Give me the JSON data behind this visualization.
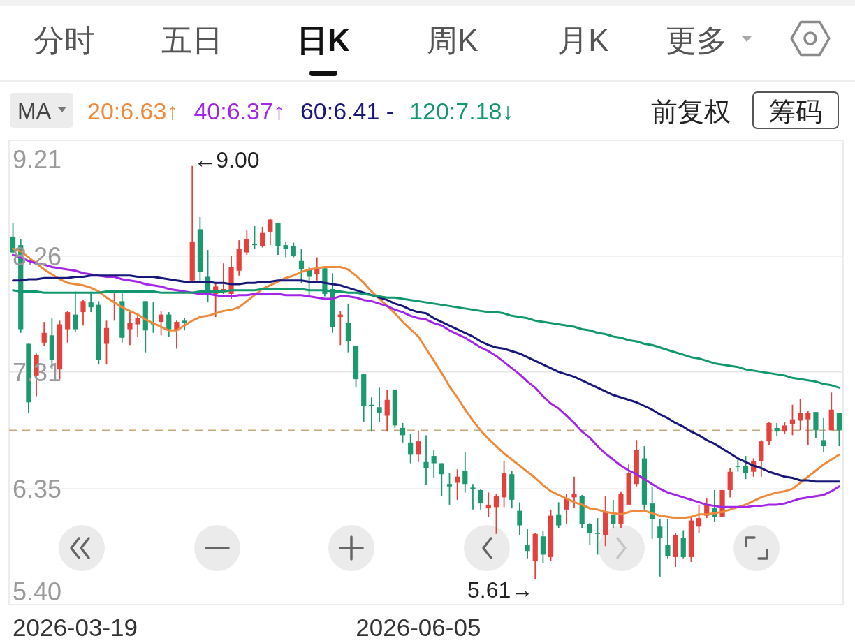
{
  "chart_data": {
    "type": "candlestick",
    "categories": [
      null,
      null,
      null,
      null,
      null,
      null,
      null,
      null,
      null,
      null,
      null,
      null,
      null,
      null,
      null,
      null,
      null,
      null,
      null,
      null,
      null,
      null,
      null,
      null,
      null,
      null,
      null,
      null,
      null,
      null,
      null,
      null,
      null,
      null,
      null,
      null,
      null,
      null,
      null,
      null,
      null,
      null,
      null,
      null,
      null,
      null,
      null,
      null,
      null,
      null,
      null,
      null,
      "2026-06-05",
      null,
      null,
      null,
      null,
      null,
      null,
      null,
      null,
      null,
      null,
      null,
      null,
      null,
      null,
      null,
      null,
      null,
      null,
      null,
      null,
      null,
      null,
      null,
      null,
      null,
      null,
      null,
      null,
      null,
      null,
      null,
      null,
      null,
      null,
      null,
      null,
      null,
      null,
      null,
      null,
      null,
      null,
      null,
      null,
      null,
      null,
      null,
      null,
      null,
      null,
      null,
      null,
      null,
      null
    ],
    "ohlc": [
      [
        8.42,
        8.53,
        8.28,
        8.29
      ],
      [
        8.35,
        8.4,
        7.63,
        7.66
      ],
      [
        7.54,
        7.54,
        6.97,
        7.06
      ],
      [
        7.28,
        7.46,
        7.11,
        7.45
      ],
      [
        7.55,
        7.72,
        7.52,
        7.63
      ],
      [
        7.61,
        7.75,
        7.33,
        7.41
      ],
      [
        7.33,
        7.73,
        7.25,
        7.7
      ],
      [
        7.66,
        7.81,
        7.55,
        7.8
      ],
      [
        7.78,
        7.97,
        7.64,
        7.66
      ],
      [
        7.8,
        7.9,
        7.69,
        7.89
      ],
      [
        7.88,
        7.96,
        7.8,
        7.84
      ],
      [
        7.86,
        7.89,
        7.37,
        7.41
      ],
      [
        7.54,
        7.73,
        7.37,
        7.67
      ],
      [
        7.97,
        7.98,
        7.73,
        7.98
      ],
      [
        7.89,
        7.98,
        7.55,
        7.59
      ],
      [
        7.66,
        7.8,
        7.53,
        7.71
      ],
      [
        7.7,
        7.77,
        7.6,
        7.75
      ],
      [
        7.89,
        7.89,
        7.47,
        7.65
      ],
      [
        7.71,
        7.88,
        7.63,
        7.7
      ],
      [
        7.72,
        7.81,
        7.61,
        7.78
      ],
      [
        7.78,
        7.8,
        7.6,
        7.66
      ],
      [
        7.65,
        7.73,
        7.5,
        7.72
      ],
      [
        7.73,
        7.75,
        7.65,
        7.71
      ],
      [
        8.06,
        9.0,
        8.05,
        8.38
      ],
      [
        8.48,
        8.58,
        8.05,
        8.13
      ],
      [
        8.09,
        8.31,
        7.88,
        7.97
      ],
      [
        7.95,
        8.04,
        7.76,
        8.01
      ],
      [
        7.97,
        8.2,
        7.95,
        7.99
      ],
      [
        7.95,
        8.26,
        7.91,
        8.17
      ],
      [
        8.14,
        8.39,
        8.1,
        8.32
      ],
      [
        8.29,
        8.47,
        8.27,
        8.4
      ],
      [
        8.36,
        8.51,
        8.32,
        8.35
      ],
      [
        8.34,
        8.5,
        8.33,
        8.45
      ],
      [
        8.46,
        8.57,
        8.35,
        8.56
      ],
      [
        8.53,
        8.53,
        8.27,
        8.34
      ],
      [
        8.35,
        8.38,
        8.25,
        8.32
      ],
      [
        8.34,
        8.37,
        8.25,
        8.26
      ],
      [
        8.22,
        8.32,
        8.04,
        8.15
      ],
      [
        8.15,
        8.17,
        7.94,
        8.09
      ],
      [
        8.11,
        8.25,
        8.06,
        8.16
      ],
      [
        8.16,
        8.16,
        7.93,
        7.95
      ],
      [
        7.99,
        8.12,
        7.63,
        7.68
      ],
      [
        7.76,
        7.81,
        7.53,
        7.78
      ],
      [
        7.71,
        7.87,
        7.47,
        7.56
      ],
      [
        7.52,
        7.52,
        7.18,
        7.25
      ],
      [
        7.29,
        7.29,
        6.9,
        7.03
      ],
      [
        7.04,
        7.1,
        6.82,
        7.03
      ],
      [
        7.02,
        7.18,
        6.9,
        6.97
      ],
      [
        6.95,
        7.16,
        6.82,
        7.08
      ],
      [
        7.16,
        7.16,
        6.85,
        6.87
      ],
      [
        6.85,
        6.89,
        6.73,
        6.79
      ],
      [
        6.73,
        6.8,
        6.56,
        6.63
      ],
      [
        6.63,
        6.83,
        6.57,
        6.74
      ],
      [
        6.57,
        6.79,
        6.38,
        6.52
      ],
      [
        6.62,
        6.67,
        6.44,
        6.56
      ],
      [
        6.56,
        6.56,
        6.29,
        6.47
      ],
      [
        6.39,
        6.48,
        6.22,
        6.37
      ],
      [
        6.4,
        6.51,
        6.26,
        6.45
      ],
      [
        6.5,
        6.65,
        6.32,
        6.39
      ],
      [
        6.36,
        6.39,
        6.18,
        6.35
      ],
      [
        6.34,
        6.35,
        6.18,
        6.23
      ],
      [
        6.19,
        6.32,
        6.12,
        6.22
      ],
      [
        6.2,
        6.31,
        5.98,
        6.29
      ],
      [
        6.28,
        6.58,
        6.2,
        6.48
      ],
      [
        6.47,
        6.5,
        6.19,
        6.26
      ],
      [
        6.17,
        6.24,
        5.97,
        6.05
      ],
      [
        5.89,
        6.02,
        5.78,
        5.84
      ],
      [
        5.76,
        5.99,
        5.61,
        5.98
      ],
      [
        5.96,
        6.0,
        5.74,
        5.81
      ],
      [
        5.79,
        6.18,
        5.76,
        6.13
      ],
      [
        6.14,
        6.24,
        6.03,
        6.05
      ],
      [
        6.18,
        6.31,
        6.06,
        6.27
      ],
      [
        6.28,
        6.45,
        6.19,
        6.31
      ],
      [
        6.29,
        6.3,
        6.03,
        6.06
      ],
      [
        6.06,
        6.07,
        5.89,
        5.99
      ],
      [
        5.99,
        6.11,
        5.81,
        5.98
      ],
      [
        5.97,
        6.29,
        5.88,
        6.16
      ],
      [
        6.14,
        6.26,
        6.03,
        6.06
      ],
      [
        6.06,
        6.33,
        6.03,
        6.31
      ],
      [
        6.22,
        6.55,
        6.22,
        6.48
      ],
      [
        6.39,
        6.75,
        6.37,
        6.67
      ],
      [
        6.6,
        6.7,
        6.18,
        6.22
      ],
      [
        6.23,
        6.37,
        5.94,
        6.1
      ],
      [
        6.04,
        6.1,
        5.63,
        5.95
      ],
      [
        5.89,
        6.1,
        5.78,
        5.8
      ],
      [
        5.79,
        5.99,
        5.71,
        5.97
      ],
      [
        5.95,
        6.01,
        5.78,
        5.79
      ],
      [
        5.79,
        6.12,
        5.75,
        6.09
      ],
      [
        6.04,
        6.22,
        5.99,
        6.11
      ],
      [
        6.13,
        6.27,
        6.11,
        6.22
      ],
      [
        6.19,
        6.34,
        6.08,
        6.12
      ],
      [
        6.12,
        6.34,
        6.12,
        6.34
      ],
      [
        6.34,
        6.52,
        6.28,
        6.49
      ],
      [
        6.54,
        6.6,
        6.49,
        6.53
      ],
      [
        6.54,
        6.62,
        6.43,
        6.48
      ],
      [
        6.49,
        6.6,
        6.45,
        6.58
      ],
      [
        6.58,
        6.75,
        6.45,
        6.74
      ],
      [
        6.74,
        6.9,
        6.71,
        6.89
      ],
      [
        6.85,
        6.89,
        6.78,
        6.82
      ],
      [
        6.82,
        6.9,
        6.8,
        6.87
      ],
      [
        6.88,
        7.04,
        6.79,
        6.92
      ],
      [
        6.91,
        7.09,
        6.83,
        6.97
      ],
      [
        6.92,
        6.99,
        6.71,
        6.97
      ],
      [
        6.98,
        6.98,
        6.77,
        6.83
      ],
      [
        6.75,
        6.93,
        6.65,
        6.7
      ],
      [
        6.83,
        7.14,
        6.83,
        7.0
      ],
      [
        6.97,
        6.97,
        6.7,
        6.83
      ]
    ],
    "colors": [
      "#1a9a6e",
      "#1a9a6e",
      "#1a9a6e",
      "#e5413c",
      "#e5413c",
      "#1a9a6e",
      "#e5413c",
      "#e5413c",
      "#1a9a6e",
      "#e5413c",
      "#1a9a6e",
      "#1a9a6e",
      "#e5413c",
      "#e5413c",
      "#1a9a6e",
      "#e5413c",
      "#e5413c",
      "#1a9a6e",
      "#1a9a6e",
      "#e5413c",
      "#1a9a6e",
      "#e5413c",
      "#1a9a6e",
      "#e5413c",
      "#1a9a6e",
      "#1a9a6e",
      "#e5413c",
      "#e5413c",
      "#e5413c",
      "#e5413c",
      "#e5413c",
      "#1a9a6e",
      "#e5413c",
      "#e5413c",
      "#1a9a6e",
      "#1a9a6e",
      "#1a9a6e",
      "#1a9a6e",
      "#1a9a6e",
      "#e5413c",
      "#1a9a6e",
      "#1a9a6e",
      "#e5413c",
      "#1a9a6e",
      "#1a9a6e",
      "#1a9a6e",
      "#1a9a6e",
      "#1a9a6e",
      "#e5413c",
      "#1a9a6e",
      "#1a9a6e",
      "#1a9a6e",
      "#e5413c",
      "#1a9a6e",
      "#1a9a6e",
      "#1a9a6e",
      "#1a9a6e",
      "#e5413c",
      "#1a9a6e",
      "#1a9a6e",
      "#1a9a6e",
      "#e5413c",
      "#e5413c",
      "#e5413c",
      "#1a9a6e",
      "#1a9a6e",
      "#1a9a6e",
      "#e5413c",
      "#1a9a6e",
      "#e5413c",
      "#1a9a6e",
      "#e5413c",
      "#e5413c",
      "#1a9a6e",
      "#1a9a6e",
      "#1a9a6e",
      "#e5413c",
      "#1a9a6e",
      "#e5413c",
      "#e5413c",
      "#e5413c",
      "#1a9a6e",
      "#1a9a6e",
      "#1a9a6e",
      "#1a9a6e",
      "#e5413c",
      "#1a9a6e",
      "#e5413c",
      "#e5413c",
      "#e5413c",
      "#1a9a6e",
      "#e5413c",
      "#e5413c",
      "#1a9a6e",
      "#1a9a6e",
      "#e5413c",
      "#e5413c",
      "#e5413c",
      "#1a9a6e",
      "#e5413c",
      "#e5413c",
      "#e5413c",
      "#e5413c",
      "#1a9a6e",
      "#1a9a6e",
      "#e5413c",
      "#1a9a6e"
    ],
    "series": [
      {
        "name": "20:6.63↑",
        "type": "line",
        "color": "#ef8a3c",
        "values": [
          8.32,
          8.3,
          8.25,
          8.2,
          8.15,
          8.11,
          8.07,
          8.04,
          8.03,
          8.02,
          8.0,
          7.97,
          7.92,
          7.88,
          7.84,
          7.81,
          7.78,
          7.74,
          7.71,
          7.68,
          7.65,
          7.65,
          7.69,
          7.73,
          7.76,
          7.77,
          7.79,
          7.81,
          7.82,
          7.84,
          7.89,
          7.94,
          7.99,
          8.02,
          8.05,
          8.08,
          8.1,
          8.13,
          8.15,
          8.16,
          8.17,
          8.17,
          8.17,
          8.15,
          8.1,
          8.04,
          7.97,
          7.91,
          7.85,
          7.79,
          7.72,
          7.66,
          7.6,
          7.5,
          7.4,
          7.3,
          7.19,
          7.1,
          7.0,
          6.91,
          6.83,
          6.76,
          6.7,
          6.64,
          6.59,
          6.54,
          6.49,
          6.44,
          6.38,
          6.33,
          6.3,
          6.27,
          6.24,
          6.22,
          6.19,
          6.18,
          6.16,
          6.15,
          6.14,
          6.16,
          6.17,
          6.17,
          6.15,
          6.13,
          6.12,
          6.11,
          6.11,
          6.12,
          6.14,
          6.14,
          6.15,
          6.16,
          6.18,
          6.2,
          6.22,
          6.25,
          6.28,
          6.3,
          6.32,
          6.33,
          6.35,
          6.4,
          6.45,
          6.5,
          6.55,
          6.59,
          6.63
        ]
      },
      {
        "name": "40:6.37↑",
        "type": "line",
        "color": "#a326e8",
        "values": [
          8.27,
          8.25,
          8.22,
          8.2,
          8.19,
          8.17,
          8.16,
          8.15,
          8.14,
          8.12,
          8.11,
          8.1,
          8.09,
          8.09,
          8.07,
          8.06,
          8.05,
          8.03,
          8.02,
          8.01,
          7.99,
          7.98,
          7.97,
          7.96,
          7.95,
          7.95,
          7.94,
          7.93,
          7.93,
          7.94,
          7.94,
          7.95,
          7.95,
          7.95,
          7.95,
          7.94,
          7.94,
          7.94,
          7.93,
          7.92,
          7.91,
          7.91,
          7.93,
          7.93,
          7.92,
          7.9,
          7.89,
          7.87,
          7.85,
          7.82,
          7.8,
          7.77,
          7.75,
          7.74,
          7.71,
          7.69,
          7.65,
          7.62,
          7.59,
          7.55,
          7.51,
          7.48,
          7.44,
          7.39,
          7.34,
          7.29,
          7.23,
          7.18,
          7.11,
          7.05,
          7.01,
          6.95,
          6.89,
          6.82,
          6.77,
          6.7,
          6.64,
          6.59,
          6.54,
          6.5,
          6.47,
          6.43,
          6.39,
          6.35,
          6.32,
          6.3,
          6.28,
          6.26,
          6.24,
          6.22,
          6.21,
          6.2,
          6.2,
          6.2,
          6.2,
          6.21,
          6.21,
          6.22,
          6.22,
          6.23,
          6.25,
          6.27,
          6.28,
          6.29,
          6.3,
          6.33,
          6.37
        ]
      },
      {
        "name": "60:6.41 -",
        "type": "line",
        "color": "#18187a",
        "values": [
          8.06,
          8.06,
          8.07,
          8.07,
          8.08,
          8.08,
          8.08,
          8.08,
          8.09,
          8.09,
          8.1,
          8.1,
          8.1,
          8.1,
          8.1,
          8.1,
          8.09,
          8.09,
          8.09,
          8.08,
          8.07,
          8.06,
          8.05,
          8.05,
          8.05,
          8.05,
          8.04,
          8.04,
          8.03,
          8.03,
          8.04,
          8.04,
          8.05,
          8.05,
          8.06,
          8.06,
          8.06,
          8.06,
          8.05,
          8.05,
          8.04,
          8.03,
          8.02,
          8.0,
          7.98,
          7.96,
          7.94,
          7.92,
          7.9,
          7.87,
          7.85,
          7.82,
          7.8,
          7.79,
          7.75,
          7.72,
          7.69,
          7.66,
          7.63,
          7.6,
          7.56,
          7.53,
          7.51,
          7.5,
          7.48,
          7.46,
          7.43,
          7.4,
          7.37,
          7.34,
          7.31,
          7.29,
          7.27,
          7.24,
          7.21,
          7.18,
          7.15,
          7.12,
          7.1,
          7.08,
          7.06,
          7.03,
          7.0,
          6.96,
          6.93,
          6.89,
          6.86,
          6.82,
          6.79,
          6.75,
          6.72,
          6.68,
          6.64,
          6.6,
          6.57,
          6.54,
          6.52,
          6.49,
          6.47,
          6.45,
          6.44,
          6.42,
          6.42,
          6.41,
          6.41,
          6.41,
          6.41
        ]
      },
      {
        "name": "120:7.18↓",
        "type": "line",
        "color": "#13976e",
        "values": [
          7.98,
          7.97,
          7.97,
          7.97,
          7.96,
          7.96,
          7.96,
          7.96,
          7.96,
          7.96,
          7.96,
          7.96,
          7.97,
          7.97,
          7.97,
          7.97,
          7.97,
          7.97,
          7.97,
          7.96,
          7.96,
          7.96,
          7.96,
          7.96,
          7.97,
          7.97,
          7.97,
          7.97,
          7.98,
          7.98,
          7.98,
          7.98,
          7.99,
          7.99,
          7.99,
          7.99,
          7.99,
          7.99,
          7.98,
          7.98,
          7.98,
          7.97,
          7.97,
          7.96,
          7.96,
          7.95,
          7.94,
          7.93,
          7.92,
          7.92,
          7.91,
          7.9,
          7.89,
          7.88,
          7.87,
          7.86,
          7.85,
          7.84,
          7.83,
          7.82,
          7.81,
          7.8,
          7.8,
          7.79,
          7.77,
          7.76,
          7.75,
          7.73,
          7.72,
          7.71,
          7.7,
          7.69,
          7.68,
          7.66,
          7.65,
          7.63,
          7.62,
          7.6,
          7.59,
          7.57,
          7.56,
          7.54,
          7.53,
          7.51,
          7.49,
          7.47,
          7.45,
          7.43,
          7.42,
          7.4,
          7.38,
          7.37,
          7.36,
          7.35,
          7.33,
          7.32,
          7.31,
          7.3,
          7.29,
          7.28,
          7.26,
          7.25,
          7.24,
          7.23,
          7.21,
          7.2,
          7.18
        ]
      }
    ],
    "ylim": [
      5.4,
      9.21
    ],
    "yticks": [
      9.21,
      8.26,
      7.31,
      6.35,
      {
        "value": 5.4,
        "label": "5.40"
      }
    ],
    "grid": "y",
    "legend": "top",
    "legend_title": "MA",
    "ref_lines": [
      {
        "axis": "y",
        "value": 6.83,
        "color": "#c9a77c",
        "line_style": "dashed"
      }
    ],
    "annotations": [
      "分时",
      "五日",
      "日K",
      "周K",
      "月K",
      "更多",
      "前复权",
      "筹码",
      "←9.00",
      "5.61→",
      "2026-03-19"
    ]
  }
}
